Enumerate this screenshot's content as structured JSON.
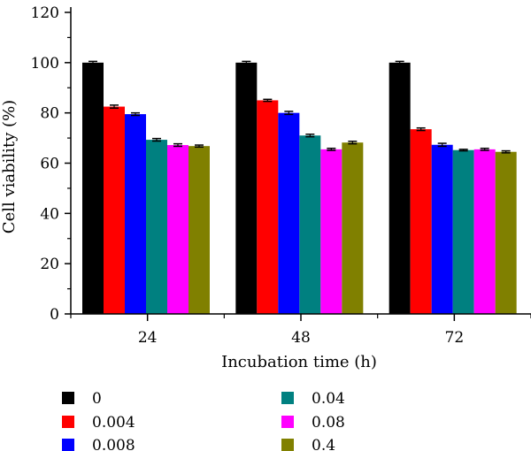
{
  "chart_data": {
    "type": "bar",
    "xlabel": "Incubation time (h)",
    "ylabel": "Cell viability (%)",
    "ylim": [
      0,
      120
    ],
    "yticks": [
      "0",
      "20",
      "40",
      "60",
      "80",
      "100",
      "120"
    ],
    "categories": [
      "24",
      "48",
      "72"
    ],
    "grid": false,
    "legend_position": "bottom",
    "series": [
      {
        "name": "0",
        "color": "#000000",
        "values": [
          100,
          100,
          100
        ],
        "errors": [
          0.5,
          0.5,
          0.5
        ]
      },
      {
        "name": "0.004",
        "color": "#ff0000",
        "values": [
          82.5,
          85,
          73.5
        ],
        "errors": [
          0.6,
          0.4,
          0.5
        ]
      },
      {
        "name": "0.008",
        "color": "#0000ff",
        "values": [
          79.5,
          80,
          67.3
        ],
        "errors": [
          0.5,
          0.6,
          0.6
        ]
      },
      {
        "name": "0.04",
        "color": "#008080",
        "values": [
          69.3,
          71,
          65.2
        ],
        "errors": [
          0.5,
          0.5,
          0.3
        ]
      },
      {
        "name": "0.08",
        "color": "#ff00ff",
        "values": [
          67.2,
          65.5,
          65.5
        ],
        "errors": [
          0.5,
          0.4,
          0.4
        ]
      },
      {
        "name": "0.4",
        "color": "#808000",
        "values": [
          66.8,
          68.2,
          64.5
        ],
        "errors": [
          0.4,
          0.5,
          0.4
        ]
      }
    ]
  }
}
